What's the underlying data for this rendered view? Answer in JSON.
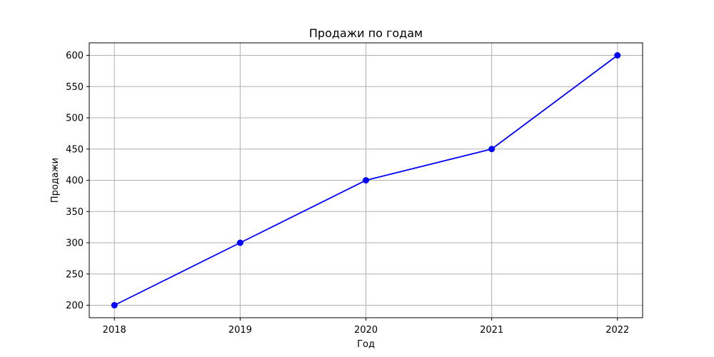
{
  "chart_data": {
    "type": "line",
    "title": "Продажи по годам",
    "xlabel": "Год",
    "ylabel": "Продажи",
    "x": [
      2018,
      2019,
      2020,
      2021,
      2022
    ],
    "x_tick_labels": [
      "2018",
      "2019",
      "2020",
      "2021",
      "2022"
    ],
    "series": [
      {
        "values": [
          200,
          300,
          400,
          450,
          600
        ],
        "color": "#0000ff",
        "marker": "circle"
      }
    ],
    "ylim": [
      180,
      620
    ],
    "y_ticks": [
      200,
      250,
      300,
      350,
      400,
      450,
      500,
      550,
      600
    ],
    "grid": true
  }
}
